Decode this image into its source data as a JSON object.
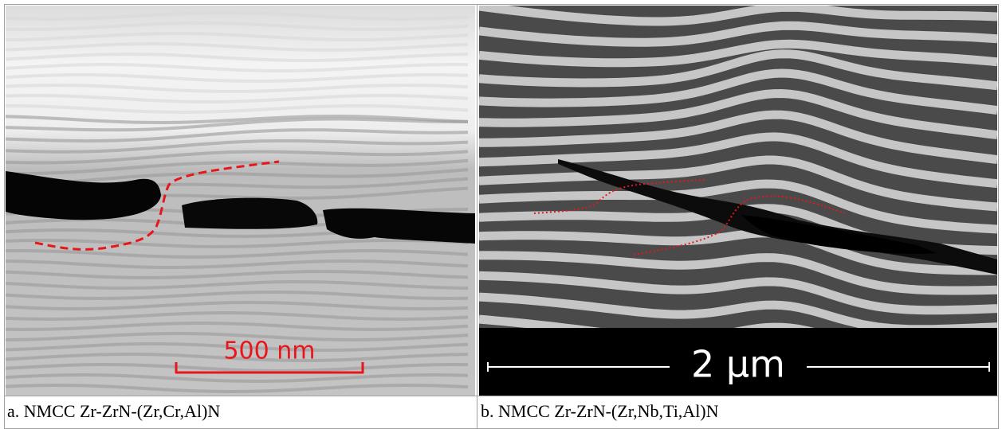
{
  "panels": [
    {
      "caption": "a. NMCC Zr-ZrN-(Zr,Cr,Al)N",
      "scale_bar": "500 nm"
    },
    {
      "caption": "b. NMCC Zr-ZrN-(Zr,Nb,Ti,Al)N",
      "scale_bar": "2 µm"
    }
  ]
}
